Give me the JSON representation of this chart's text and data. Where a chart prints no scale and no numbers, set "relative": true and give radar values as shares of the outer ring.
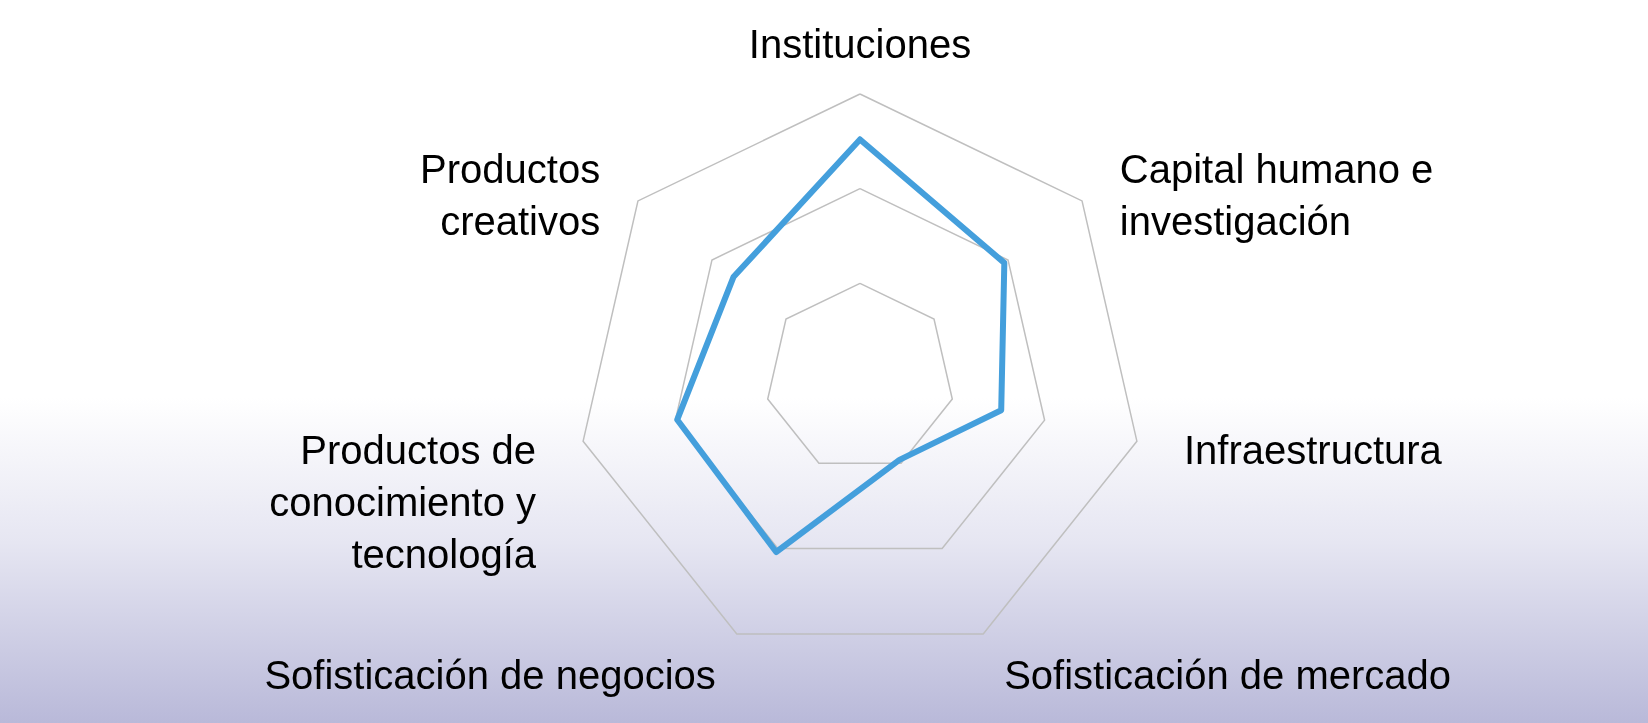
{
  "chart_data": {
    "type": "radar",
    "relative": true,
    "grid": true,
    "marker": "none",
    "line_style": "solid",
    "categories": [
      "Instituciones",
      "Capital humano e investigación",
      "Infraestructura",
      "Sofisticación de mercado",
      "Sofisticación de negocios",
      "Productos de conocimiento y tecnología",
      "Productos creativos"
    ],
    "series": [
      {
        "color": "#449fdc",
        "values": [
          0.84,
          0.65,
          0.51,
          0.32,
          0.68,
          0.66,
          0.57
        ]
      }
    ]
  }
}
